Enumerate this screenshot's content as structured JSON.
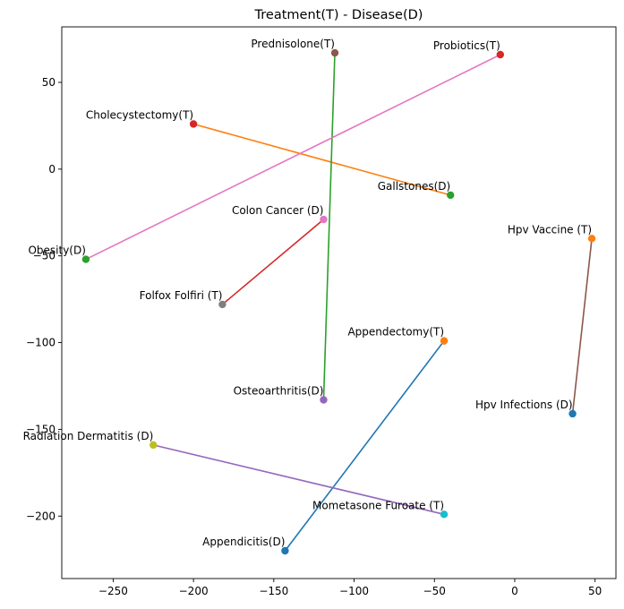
{
  "chart_data": {
    "type": "scatter",
    "title": "Treatment(T) - Disease(D)",
    "xlabel": "",
    "ylabel": "",
    "xlim": [
      -282,
      63
    ],
    "ylim": [
      -236,
      82
    ],
    "xticks": [
      -250,
      -200,
      -150,
      -100,
      -50,
      0,
      50
    ],
    "yticks": [
      -200,
      -150,
      -100,
      -50,
      0,
      50
    ],
    "grid": false,
    "pairs": [
      {
        "color": "#1f77b4",
        "treatment": {
          "label": "Appendectomy(T)",
          "x": -44,
          "y": -99,
          "color": "#ff7f0e"
        },
        "disease": {
          "label": "Appendicitis(D)",
          "x": -143,
          "y": -220,
          "color": "#1f77b4"
        }
      },
      {
        "color": "#ff7f0e",
        "treatment": {
          "label": "Cholecystectomy(T)",
          "x": -200,
          "y": 26,
          "color": "#d62728"
        },
        "disease": {
          "label": "Gallstones(D)",
          "x": -40,
          "y": -15,
          "color": "#2ca02c"
        }
      },
      {
        "color": "#2ca02c",
        "treatment": {
          "label": "Prednisolone(T)",
          "x": -112,
          "y": 67,
          "color": "#8c564b"
        },
        "disease": {
          "label": "Osteoarthritis(D)",
          "x": -119,
          "y": -133,
          "color": "#9467bd"
        }
      },
      {
        "color": "#d62728",
        "treatment": {
          "label": "Folfox Folfiri (T)",
          "x": -182,
          "y": -78,
          "color": "#7f7f7f"
        },
        "disease": {
          "label": "Colon Cancer (D)",
          "x": -119,
          "y": -29,
          "color": "#e377c2"
        }
      },
      {
        "color": "#9467bd",
        "treatment": {
          "label": "Mometasone Furoate (T)",
          "x": -44,
          "y": -199,
          "color": "#17becf"
        },
        "disease": {
          "label": "Radiation Dermatitis (D)",
          "x": -225,
          "y": -159,
          "color": "#bcbd22"
        }
      },
      {
        "color": "#8c564b",
        "treatment": {
          "label": "Hpv Vaccine (T)",
          "x": 48,
          "y": -40,
          "color": "#ff7f0e"
        },
        "disease": {
          "label": "Hpv Infections (D)",
          "x": 36,
          "y": -141,
          "color": "#1f77b4"
        }
      },
      {
        "color": "#e377c2",
        "treatment": {
          "label": "Probiotics(T)",
          "x": -9,
          "y": 66,
          "color": "#d62728"
        },
        "disease": {
          "label": "Obesity(D)",
          "x": -267,
          "y": -52,
          "color": "#2ca02c"
        }
      }
    ]
  }
}
